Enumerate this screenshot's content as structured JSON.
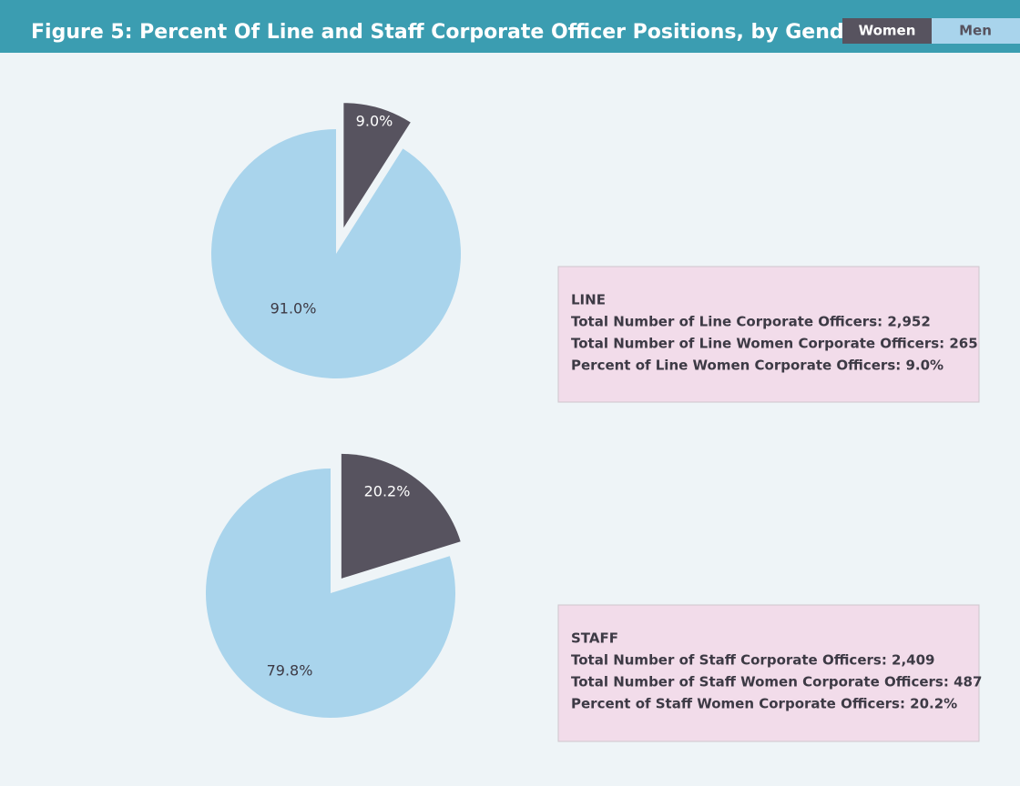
{
  "header": {
    "title": "Figure 5: Percent Of Line and Staff Corporate Officer Positions, by Gender"
  },
  "chart_data": [
    {
      "type": "pie",
      "categories": [
        "Women",
        "Men"
      ],
      "values": [
        9.0,
        91.0
      ],
      "value_labels": [
        "9.0%",
        "91.0%"
      ],
      "colors": [
        "#57535f",
        "#a9d4ec"
      ],
      "annotations": [
        "LINE",
        "Total Number of Line Corporate Officers: 2,952",
        "Total Number of Line Women Corporate Officers: 265",
        "Percent of Line Women Corporate Officers: 9.0%"
      ]
    },
    {
      "type": "pie",
      "categories": [
        "Women",
        "Men"
      ],
      "values": [
        20.2,
        79.8
      ],
      "value_labels": [
        "20.2%",
        "79.8%"
      ],
      "colors": [
        "#57535f",
        "#a9d4ec"
      ],
      "annotations": [
        "STAFF",
        "Total Number of Staff Corporate Officers: 2,409",
        "Total Number of Staff Women Corporate Officers: 487",
        "Percent of Staff Women Corporate Officers: 20.2%"
      ]
    }
  ]
}
